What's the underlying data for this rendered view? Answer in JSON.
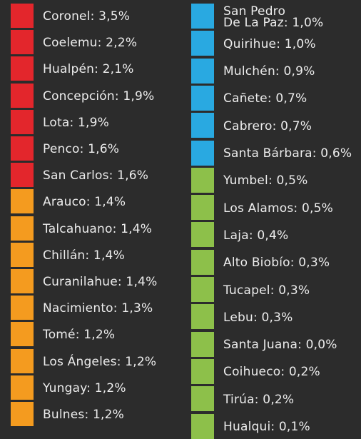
{
  "columns": [
    {
      "items": [
        {
          "label": "Coronel: 3,5%",
          "color": "#e3262c"
        },
        {
          "label": "Coelemu: 2,2%",
          "color": "#e3262c"
        },
        {
          "label": "Hualpén: 2,1%",
          "color": "#e3262c"
        },
        {
          "label": "Concepción: 1,9%",
          "color": "#e3262c"
        },
        {
          "label": "Lota: 1,9%",
          "color": "#e3262c"
        },
        {
          "label": "Penco: 1,6%",
          "color": "#e3262c"
        },
        {
          "label": "San Carlos: 1,6%",
          "color": "#e3262c"
        },
        {
          "label": "Arauco: 1,4%",
          "color": "#f49b1f"
        },
        {
          "label": "Talcahuano: 1,4%",
          "color": "#f49b1f"
        },
        {
          "label": "Chillán: 1,4%",
          "color": "#f49b1f"
        },
        {
          "label": "Curanilahue: 1,4%",
          "color": "#f49b1f"
        },
        {
          "label": "Nacimiento: 1,3%",
          "color": "#f49b1f"
        },
        {
          "label": "Tomé: 1,2%",
          "color": "#f49b1f"
        },
        {
          "label": "Los Ángeles: 1,2%",
          "color": "#f49b1f"
        },
        {
          "label": "Yungay: 1,2%",
          "color": "#f49b1f"
        },
        {
          "label": "Bulnes: 1,2%",
          "color": "#f49b1f"
        }
      ]
    },
    {
      "items": [
        {
          "label": "San Pedro\nDe La Paz: 1,0%",
          "color": "#29a9e1"
        },
        {
          "label": "Quirihue: 1,0%",
          "color": "#29a9e1"
        },
        {
          "label": "Mulchén: 0,9%",
          "color": "#29a9e1"
        },
        {
          "label": "Cañete: 0,7%",
          "color": "#29a9e1"
        },
        {
          "label": "Cabrero: 0,7%",
          "color": "#29a9e1"
        },
        {
          "label": "Santa Bárbara: 0,6%",
          "color": "#29a9e1"
        },
        {
          "label": "Yumbel: 0,5%",
          "color": "#8dc04a"
        },
        {
          "label": "Los Alamos: 0,5%",
          "color": "#8dc04a"
        },
        {
          "label": "Laja: 0,4%",
          "color": "#8dc04a"
        },
        {
          "label": "Alto Biobío: 0,3%",
          "color": "#8dc04a"
        },
        {
          "label": "Tucapel: 0,3%",
          "color": "#8dc04a"
        },
        {
          "label": "Lebu: 0,3%",
          "color": "#8dc04a"
        },
        {
          "label": "Santa Juana: 0,0%",
          "color": "#8dc04a"
        },
        {
          "label": "Coihueco: 0,2%",
          "color": "#8dc04a"
        },
        {
          "label": "Tirúa: 0,2%",
          "color": "#8dc04a"
        },
        {
          "label": "Hualqui: 0,1%",
          "color": "#8dc04a"
        }
      ]
    }
  ]
}
